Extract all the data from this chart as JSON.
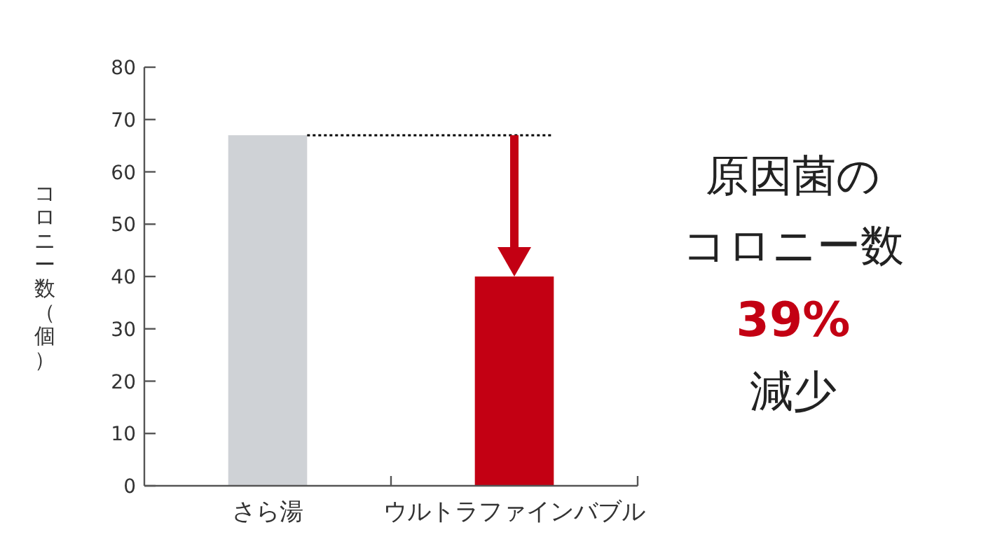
{
  "chart_data": {
    "type": "bar",
    "categories": [
      "さら湯",
      "ウルトラファインバブル"
    ],
    "colors": [
      "#cfd2d6",
      "#c30013"
    ],
    "values": [
      67,
      40
    ],
    "ylim": [
      0,
      80
    ],
    "yticks": [
      0,
      10,
      20,
      30,
      40,
      50,
      60,
      70,
      80
    ],
    "ylabel": "コロニー数（個）",
    "ref_lines": [
      {
        "axis": "y",
        "value": 67,
        "line_style": "dotted",
        "color": "#000000"
      }
    ],
    "annotations": [
      "原因菌の",
      "コロニー数",
      "39%",
      "減少"
    ],
    "grid": false
  }
}
